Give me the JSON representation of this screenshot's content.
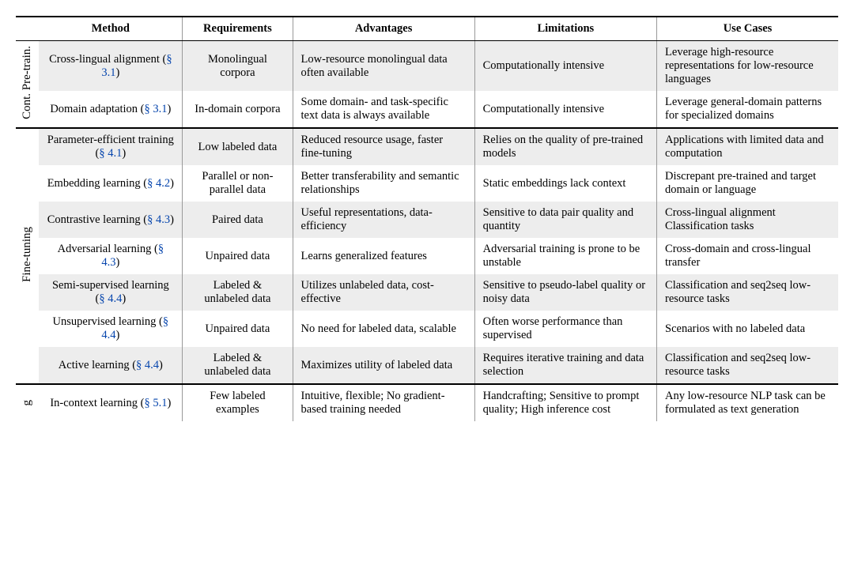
{
  "headers": {
    "method": "Method",
    "requirements": "Requirements",
    "advantages": "Advantages",
    "limitations": "Limitations",
    "usecases": "Use Cases"
  },
  "groups": [
    {
      "label": "Cont. Pre-train.",
      "rows": [
        {
          "shade": true,
          "method_a": "Cross-lingual alignment (",
          "method_ref": "§ 3.1",
          "method_b": ")",
          "req": "Monolingual corpora",
          "adv": "Low-resource monolingual data often available",
          "lim": "Computationally intensive",
          "use": "Leverage high-resource representations for low-resource languages"
        },
        {
          "shade": false,
          "method_a": "Domain adaptation (",
          "method_ref": "§ 3.1",
          "method_b": ")",
          "req": "In-domain corpora",
          "adv": "Some domain- and task-specific text data is always available",
          "lim": "Computationally intensive",
          "use": "Leverage general-domain patterns for specialized domains"
        }
      ]
    },
    {
      "label": "Fine-tuning",
      "rows": [
        {
          "shade": true,
          "method_a": "Parameter-efficient training (",
          "method_ref": "§ 4.1",
          "method_b": ")",
          "req": "Low labeled data",
          "adv": "Reduced resource usage, faster fine-tuning",
          "lim": "Relies on the quality of pre-trained models",
          "use": "Applications with limited data and computation"
        },
        {
          "shade": false,
          "method_a": "Embedding learning (",
          "method_ref": "§ 4.2",
          "method_b": ")",
          "req": "Parallel or non-parallel data",
          "adv": "Better transferability and semantic relationships",
          "lim": "Static embeddings lack context",
          "use": "Discrepant pre-trained and target domain or language"
        },
        {
          "shade": true,
          "method_a": "Contrastive learning (",
          "method_ref": "§ 4.3",
          "method_b": ")",
          "req": "Paired data",
          "adv": "Useful representations, data-efficiency",
          "lim": "Sensitive to data pair quality and quantity",
          "use": "Cross-lingual alignment Classification tasks"
        },
        {
          "shade": false,
          "method_a": "Adversarial learning (",
          "method_ref": "§ 4.3",
          "method_b": ")",
          "req": "Unpaired data",
          "adv": "Learns generalized features",
          "lim": "Adversarial training is prone to be unstable",
          "use": "Cross-domain and cross-lingual transfer"
        },
        {
          "shade": true,
          "method_a": "Semi-supervised learning (",
          "method_ref": "§ 4.4",
          "method_b": ")",
          "req": "Labeled & unlabeled data",
          "adv": "Utilizes unlabeled data, cost-effective",
          "lim": "Sensitive to pseudo-label quality or noisy data",
          "use": "Classification and seq2seq low-resource tasks"
        },
        {
          "shade": false,
          "method_a": "Unsupervised learning (",
          "method_ref": "§ 4.4",
          "method_b": ")",
          "req": "Unpaired data",
          "adv": "No need for labeled data, scalable",
          "lim": "Often worse perfor­mance than supervised",
          "use": "Scenarios with no labeled data"
        },
        {
          "shade": true,
          "method_a": "Active learning (",
          "method_ref": "§ 4.4",
          "method_b": ")",
          "req": "Labeled & unlabeled data",
          "adv": "Maximizes utility of labeled data",
          "lim": "Requires iterative training and data selection",
          "use": "Classification and seq2seq low-resource tasks"
        }
      ]
    },
    {
      "label": "g",
      "rows": [
        {
          "shade": false,
          "method_a": "In-context learning (",
          "method_ref": "§ 5.1",
          "method_b": ")",
          "req": "Few labeled examples",
          "adv": "Intuitive, flexible; No gradient-based training needed",
          "lim": "Handcrafting; Sensitive to prompt quality; High inference cost",
          "use": "Any low-resource NLP task can be formulated as text generation"
        }
      ]
    }
  ]
}
